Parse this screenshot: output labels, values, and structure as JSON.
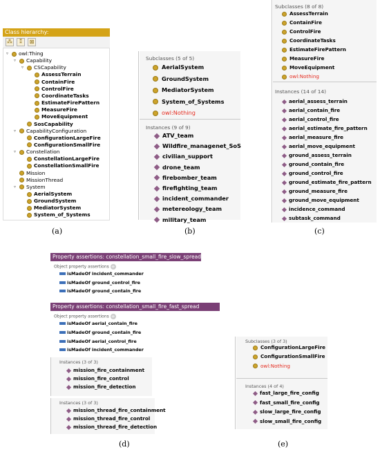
{
  "panel_a": {
    "title": "Class hierarchy:",
    "toolbar_icons": [
      "add-subclass-icon",
      "add-sibling-icon",
      "delete-class-icon"
    ],
    "tree": [
      {
        "label": "owl:Thing",
        "depth": 0,
        "toggle": "▿"
      },
      {
        "label": "Capability",
        "depth": 1,
        "toggle": "▿"
      },
      {
        "label": "CSCapability",
        "depth": 2,
        "toggle": "▿"
      },
      {
        "label": "AssessTerrain",
        "depth": 3,
        "toggle": ""
      },
      {
        "label": "ContainFire",
        "depth": 3,
        "toggle": ""
      },
      {
        "label": "ControlFire",
        "depth": 3,
        "toggle": ""
      },
      {
        "label": "CoordinateTasks",
        "depth": 3,
        "toggle": ""
      },
      {
        "label": "EstimateFirePattern",
        "depth": 3,
        "toggle": ""
      },
      {
        "label": "MeasureFire",
        "depth": 3,
        "toggle": ""
      },
      {
        "label": "MoveEquipment",
        "depth": 3,
        "toggle": ""
      },
      {
        "label": "SosCapability",
        "depth": 2,
        "toggle": ""
      },
      {
        "label": "CapabilityConfiguration",
        "depth": 1,
        "toggle": "▿"
      },
      {
        "label": "ConfigurationLargeFire",
        "depth": 2,
        "toggle": ""
      },
      {
        "label": "ConfigurationSmallFire",
        "depth": 2,
        "toggle": ""
      },
      {
        "label": "Constellation",
        "depth": 1,
        "toggle": "▿"
      },
      {
        "label": "ConstellationLargeFire",
        "depth": 2,
        "toggle": ""
      },
      {
        "label": "ConstellationSmallFire",
        "depth": 2,
        "toggle": ""
      },
      {
        "label": "Mission",
        "depth": 1,
        "toggle": ""
      },
      {
        "label": "MissionThread",
        "depth": 1,
        "toggle": ""
      },
      {
        "label": "System",
        "depth": 1,
        "toggle": "▿"
      },
      {
        "label": "AerialSystem",
        "depth": 2,
        "toggle": ""
      },
      {
        "label": "GroundSystem",
        "depth": 2,
        "toggle": ""
      },
      {
        "label": "MediatorSystem",
        "depth": 2,
        "toggle": ""
      },
      {
        "label": "System_of_Systems",
        "depth": 2,
        "toggle": ""
      }
    ],
    "caption": "(a)"
  },
  "panel_b": {
    "subclasses_title": "Subclasses (5 of 5)",
    "subclasses": [
      {
        "label": "AerialSystem",
        "red": false
      },
      {
        "label": "GroundSystem",
        "red": false
      },
      {
        "label": "MediatorSystem",
        "red": false
      },
      {
        "label": "System_of_Systems",
        "red": false
      },
      {
        "label": "owl:Nothing",
        "red": true
      }
    ],
    "instances_title": "Instances (9 of 9)",
    "instances": [
      "ATV_team",
      "Wildfire_managenet_SoS",
      "civilian_support",
      "drone_team",
      "firebomber_team",
      "firefighting_team",
      "incident_commander",
      "metereology_team",
      "military_team"
    ],
    "caption": "(b)"
  },
  "panel_c": {
    "subclasses_title": "Subclasses (8 of 8)",
    "subclasses": [
      {
        "label": "AssessTerrain",
        "red": false
      },
      {
        "label": "ContainFire",
        "red": false
      },
      {
        "label": "ControlFire",
        "red": false
      },
      {
        "label": "CoordinateTasks",
        "red": false
      },
      {
        "label": "EstimateFirePattern",
        "red": false
      },
      {
        "label": "MeasureFire",
        "red": false
      },
      {
        "label": "MoveEquipment",
        "red": false
      },
      {
        "label": "owl:Nothing",
        "red": true
      }
    ],
    "instances_title": "Instances (14 of 14)",
    "instances": [
      "aerial_assess_terrain",
      "aerial_contain_fire",
      "aerial_control_fire",
      "aerial_estimate_fire_pattern",
      "aerial_measure_fire",
      "aerial_move_equipment",
      "ground_assess_terrain",
      "ground_contain_fire",
      "ground_control_fire",
      "ground_estimate_fire_pattern",
      "ground_measure_fire",
      "ground_move_equipment",
      "incidence_command",
      "subtask_command"
    ],
    "caption": "(c)"
  },
  "panel_d": {
    "assertion1_title": "Property assertions: constellation_small_fire_slow_spread",
    "assertion1_section": "Object property assertions",
    "assertion1_rows": [
      {
        "prop": "isMadeOf",
        "value": "incident_commander"
      },
      {
        "prop": "isMadeOf",
        "value": "ground_control_fire"
      },
      {
        "prop": "isMadeOf",
        "value": "ground_contain_fire"
      }
    ],
    "assertion2_title": "Property assertions: constellation_small_fire_fast_spread",
    "assertion2_section": "Object property assertions",
    "assertion2_rows": [
      {
        "prop": "isMadeOf",
        "value": "aerial_contain_fire"
      },
      {
        "prop": "isMadeOf",
        "value": "ground_contain_fire"
      },
      {
        "prop": "isMadeOf",
        "value": "aerial_control_fire"
      },
      {
        "prop": "isMadeOf",
        "value": "incident_commander"
      }
    ],
    "instances1_title": "Instances (3 of 3)",
    "instances1": [
      "mission_fire_containment",
      "mission_fire_control",
      "mission_fire_detection"
    ],
    "instances2_title": "Instances (3 of 3)",
    "instances2": [
      "mission_thread_fire_containment",
      "mission_thread_fire_control",
      "mission_thread_fire_detection"
    ],
    "caption": "(d)"
  },
  "panel_e": {
    "subclasses_title": "Subclasses (3 of 3)",
    "subclasses": [
      {
        "label": "ConfigurationLargeFire",
        "red": false
      },
      {
        "label": "ConfigurationSmallFire",
        "red": false
      },
      {
        "label": "owl:Nothing",
        "red": true
      }
    ],
    "instances_title": "Instances (4 of 4)",
    "instances": [
      "fast_large_fire_config",
      "fast_small_fire_config",
      "slow_large_fire_config",
      "slow_small_fire_config"
    ],
    "caption": "(e)"
  },
  "colors": {
    "class_header": "#d4a317",
    "class_dot": "#cda32b",
    "individual_diamond": "#8e5c86",
    "property_header": "#7a3f75",
    "property_bar": "#3c6fb8",
    "nothing_red": "#e52b1f"
  }
}
